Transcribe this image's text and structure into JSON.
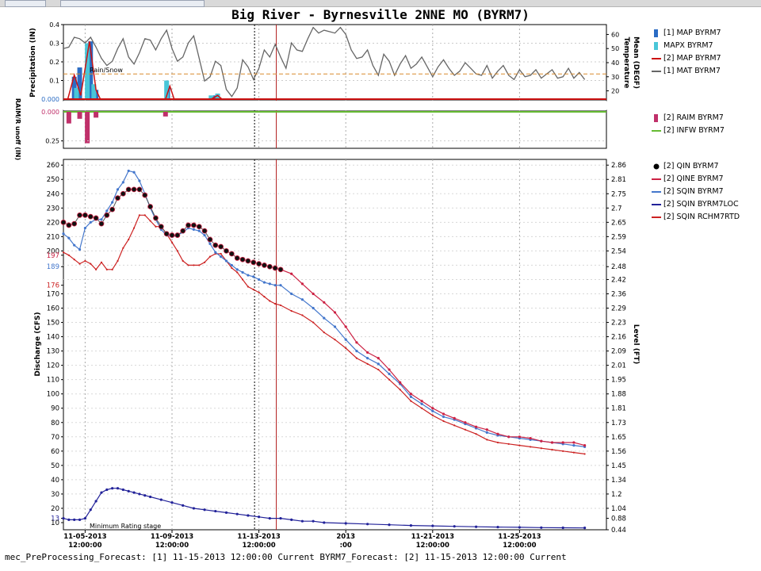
{
  "window": {
    "title": "Big River - Byrnesville 2NNE MO (BYRM7)"
  },
  "status_bar": {
    "text": "mec_PreProcessing_Forecast: [1] 11-15-2013 12:00:00 Current BYRM7_Forecast: [2] 11-15-2013 12:00:00 Current"
  },
  "precip_panel": {
    "ylabel": "Precipitation (IN)",
    "ylabel_right": "Temperature Mean (DEGF)",
    "annotation": "Rain/Snow",
    "zero_label": "0.000",
    "ticks_left": [
      "0.4",
      "0.3",
      "0.2",
      "0.1"
    ],
    "ticks_right": [
      "60",
      "50",
      "40",
      "30",
      "20"
    ],
    "legend": [
      {
        "label": "[1] MAP BYRM7",
        "color": "#2b6cc4",
        "kind": "bar"
      },
      {
        "label": "MAPX BYRM7",
        "color": "#49c6d8",
        "kind": "bar"
      },
      {
        "label": "[2] MAP BYRM7",
        "color": "#cc1111",
        "kind": "line"
      },
      {
        "label": "[1] MAT BYRM7",
        "color": "#666666",
        "kind": "line"
      }
    ]
  },
  "runoff_panel": {
    "ylabel": "RAIM/R unoff (IN)",
    "zero_label": "0.000",
    "ticks": [
      "0.25"
    ],
    "legend": [
      {
        "label": "[2] RAIM BYRM7",
        "color": "#c0306a",
        "kind": "bar"
      },
      {
        "label": "[2] INFW BYRM7",
        "color": "#66bb33",
        "kind": "line"
      }
    ]
  },
  "discharge_panel": {
    "ylabel": "Discharge (CFS)",
    "ylabel_right": "Level (FT)",
    "annotation": "Minimum Rating stage",
    "ticks_left": [
      "260",
      "250",
      "240",
      "230",
      "220",
      "210",
      "200",
      "197",
      "189",
      "176",
      "170",
      "160",
      "150",
      "140",
      "130",
      "120",
      "110",
      "100",
      "90",
      "80",
      "70",
      "60",
      "50",
      "40",
      "30",
      "20",
      "13",
      "10"
    ],
    "ticks_right": [
      "2.86",
      "2.81",
      "2.75",
      "2.7",
      "2.65",
      "2.59",
      "2.54",
      "2.48",
      "2.42",
      "2.36",
      "2.29",
      "2.23",
      "2.16",
      "2.09",
      "2.01",
      "1.95",
      "1.88",
      "1.81",
      "1.73",
      "1.65",
      "1.56",
      "1.45",
      "1.34",
      "1.2",
      "1.04",
      "0.88",
      "0.44"
    ],
    "x_ticks": [
      {
        "date": "11-05-2013",
        "time": "12:00:00"
      },
      {
        "date": "11-09-2013",
        "time": "12:00:00"
      },
      {
        "date": "11-13-2013",
        "time": "12:00:00"
      },
      {
        "date": "2013",
        "time": ":00"
      },
      {
        "date": "11-21-2013",
        "time": "12:00:00"
      },
      {
        "date": "11-25-2013",
        "time": "12:00:00"
      }
    ],
    "legend": [
      {
        "label": "[2] QIN BYRM7",
        "color": "#000000",
        "kind": "dot"
      },
      {
        "label": "[2] QINE BYRM7",
        "color": "#cc2244",
        "kind": "line"
      },
      {
        "label": "[2] SQIN BYRM7",
        "color": "#4477cc",
        "kind": "line"
      },
      {
        "label": "[2] SQIN BYRM7LOC",
        "color": "#222299",
        "kind": "line"
      },
      {
        "label": "[2] SQIN RCHM7RTD",
        "color": "#cc2222",
        "kind": "line"
      }
    ]
  },
  "chart_data": [
    {
      "type": "bar",
      "title": "Big River - Byrnesville 2NNE MO (BYRM7)",
      "ylabel": "Precipitation (IN)",
      "ylim": [
        0,
        0.4
      ],
      "series": [
        {
          "name": "[1] MAP BYRM7",
          "x": [
            0.5,
            0.75,
            1.25,
            1.5,
            4.8,
            7.0
          ],
          "values": [
            0.12,
            0.17,
            0.31,
            0.05,
            0.07,
            0.02
          ]
        },
        {
          "name": "MAPX BYRM7",
          "x": [
            0.6,
            1.1,
            1.4,
            4.75,
            6.8,
            7.1
          ],
          "values": [
            0.06,
            0.3,
            0.08,
            0.1,
            0.02,
            0.03
          ]
        },
        {
          "name": "[2] MAP BYRM7",
          "x": [
            0.2,
            0.5,
            0.8,
            1.2,
            1.5,
            1.7,
            4.7,
            4.9,
            5.1,
            6.8,
            7.1,
            7.3
          ],
          "values": [
            0,
            0.13,
            0.02,
            0.31,
            0.05,
            0,
            0,
            0.07,
            0,
            0,
            0.02,
            0
          ]
        }
      ]
    },
    {
      "type": "line",
      "ylabel": "Temperature Mean (DEGF)",
      "ylim": [
        13,
        67
      ],
      "series": [
        {
          "name": "[1] MAT BYRM7",
          "x": [
            0,
            0.25,
            0.5,
            0.75,
            1.0,
            1.25,
            1.5,
            1.75,
            2.0,
            2.25,
            2.5,
            2.75,
            3.0,
            3.25,
            3.5,
            3.75,
            4.0,
            4.25,
            4.5,
            4.75,
            5.0,
            5.25,
            5.5,
            5.75,
            6.0,
            6.25,
            6.5,
            6.75,
            7.0,
            7.25,
            7.5,
            7.75,
            8.0,
            8.25,
            8.5,
            8.75,
            9.0,
            9.25,
            9.5,
            9.75,
            10.0,
            10.25,
            10.5,
            10.75,
            11.0,
            11.25,
            11.5,
            11.75,
            12.0,
            12.25,
            12.5,
            12.75,
            13.0,
            13.25,
            13.5,
            13.75,
            14.0,
            14.25,
            14.5,
            14.75,
            15.0,
            15.25,
            15.5,
            15.75,
            16.0,
            16.25,
            16.5,
            16.75,
            17.0,
            17.25,
            17.5,
            17.75,
            18.0,
            18.25,
            18.5,
            18.75,
            19.0,
            19.25,
            19.5,
            19.75,
            20.0,
            20.25,
            20.5,
            20.75,
            21.0,
            21.25,
            21.5,
            21.75,
            22.0,
            22.25,
            22.5,
            22.75,
            23.0,
            23.25,
            23.5,
            23.75,
            24.0
          ],
          "values": [
            50,
            51,
            58,
            57,
            54,
            58,
            51,
            43,
            38,
            41,
            50,
            57,
            44,
            39,
            47,
            57,
            56,
            49,
            57,
            63,
            50,
            41,
            44,
            54,
            59,
            43,
            27,
            30,
            41,
            38,
            21,
            16,
            22,
            42,
            37,
            28,
            36,
            49,
            44,
            53,
            44,
            36,
            54,
            49,
            48,
            57,
            65,
            61,
            63,
            62,
            61,
            65,
            60,
            49,
            43,
            44,
            49,
            38,
            31,
            46,
            41,
            31,
            39,
            45,
            36,
            39,
            44,
            37,
            30,
            37,
            42,
            36,
            31,
            34,
            40,
            36,
            32,
            31,
            38,
            29,
            34,
            38,
            31,
            28,
            35,
            30,
            31,
            35,
            29,
            32,
            35,
            29,
            30,
            36,
            29,
            33,
            28
          ]
        }
      ]
    },
    {
      "type": "bar",
      "ylabel": "RAIM/R unoff (IN)",
      "ylim": [
        0.3,
        0
      ],
      "series": [
        {
          "name": "[2] RAIM BYRM7",
          "x": [
            0.25,
            0.75,
            1.1,
            1.5,
            4.7
          ],
          "values": [
            0.1,
            0.06,
            0.27,
            0.05,
            0.04
          ]
        },
        {
          "name": "[2] INFW BYRM7",
          "x": [
            0,
            24
          ],
          "values": [
            0,
            0
          ]
        }
      ]
    },
    {
      "type": "line",
      "ylabel": "Discharge (CFS)",
      "ylim": [
        5,
        264
      ],
      "series": [
        {
          "name": "[2] QIN BYRM7",
          "x": [
            0,
            0.25,
            0.5,
            0.75,
            1.0,
            1.25,
            1.5,
            1.75,
            2.0,
            2.25,
            2.5,
            2.75,
            3.0,
            3.25,
            3.5,
            3.75,
            4.0,
            4.25,
            4.5,
            4.75,
            5.0,
            5.25,
            5.5,
            5.75,
            6.0,
            6.25,
            6.5,
            6.75,
            7.0,
            7.25,
            7.5,
            7.75,
            8.0,
            8.25,
            8.5,
            8.75,
            9.0,
            9.25,
            9.5,
            9.75,
            10.0
          ],
          "values": [
            220,
            218,
            219,
            225,
            225,
            224,
            223,
            219,
            225,
            229,
            237,
            240,
            243,
            243,
            243,
            239,
            231,
            223,
            217,
            212,
            211,
            211,
            214,
            218,
            218,
            217,
            214,
            208,
            204,
            203,
            200,
            198,
            195,
            194,
            193,
            192,
            191,
            190,
            189,
            188,
            187
          ]
        },
        {
          "name": "[2] QINE BYRM7",
          "x": [
            10.0,
            10.5,
            11.0,
            11.5,
            12.0,
            12.5,
            13.0,
            13.5,
            14.0,
            14.5,
            15.0,
            15.5,
            16.0,
            16.5,
            17.0,
            17.5,
            18.0,
            18.5,
            19.0,
            19.5,
            20.0,
            20.5,
            21.0,
            21.5,
            22.0,
            22.5,
            23.0,
            23.5,
            24.0
          ],
          "values": [
            187,
            184,
            177,
            170,
            164,
            157,
            147,
            136,
            129,
            125,
            117,
            108,
            100,
            95,
            90,
            86,
            83,
            80,
            77,
            75,
            72,
            70,
            70,
            69,
            67,
            66,
            66,
            66,
            64
          ]
        },
        {
          "name": "[2] SQIN BYRM7",
          "x": [
            0,
            0.25,
            0.5,
            0.75,
            1.0,
            1.25,
            1.5,
            1.75,
            2.0,
            2.25,
            2.5,
            2.75,
            3.0,
            3.25,
            3.5,
            3.75,
            4.0,
            4.25,
            4.5,
            4.75,
            5.0,
            5.25,
            5.5,
            5.75,
            6.0,
            6.25,
            6.5,
            6.75,
            7.0,
            7.25,
            7.5,
            7.75,
            8.0,
            8.25,
            8.5,
            8.75,
            9.0,
            9.25,
            9.5,
            9.75,
            10.0,
            10.5,
            11.0,
            11.5,
            12.0,
            12.5,
            13.0,
            13.5,
            14.0,
            14.5,
            15.0,
            15.5,
            16.0,
            16.5,
            17.0,
            17.5,
            18.0,
            18.5,
            19.0,
            19.5,
            20.0,
            20.5,
            21.0,
            21.5,
            22.0,
            22.5,
            23.0,
            23.5,
            24.0
          ],
          "values": [
            212,
            209,
            204,
            201,
            216,
            220,
            222,
            222,
            228,
            234,
            243,
            248,
            256,
            255,
            249,
            240,
            230,
            222,
            215,
            211,
            210,
            211,
            213,
            216,
            215,
            214,
            211,
            205,
            199,
            196,
            193,
            190,
            187,
            185,
            183,
            182,
            180,
            178,
            177,
            176,
            176,
            170,
            166,
            160,
            153,
            147,
            138,
            130,
            125,
            121,
            114,
            107,
            98,
            93,
            88,
            84,
            82,
            79,
            76,
            73,
            71,
            70,
            69,
            68,
            67,
            66,
            65,
            64,
            63
          ]
        },
        {
          "name": "[2] SQIN BYRM7LOC",
          "x": [
            0,
            0.25,
            0.5,
            0.75,
            1.0,
            1.25,
            1.5,
            1.75,
            2.0,
            2.25,
            2.5,
            2.75,
            3.0,
            3.25,
            3.5,
            3.75,
            4.0,
            4.5,
            5.0,
            5.5,
            6.0,
            6.5,
            7.0,
            7.5,
            8.0,
            8.5,
            9.0,
            9.5,
            10.0,
            10.5,
            11.0,
            11.5,
            12.0,
            13.0,
            14.0,
            15.0,
            16.0,
            17.0,
            18.0,
            19.0,
            20.0,
            21.0,
            22.0,
            23.0,
            24.0
          ],
          "values": [
            13,
            12,
            12,
            12,
            13,
            19,
            25,
            31,
            33,
            34,
            34,
            33,
            32,
            31,
            30,
            29,
            28,
            26,
            24,
            22,
            20,
            19,
            18,
            17,
            16,
            15,
            14,
            13,
            13,
            12,
            11,
            11,
            10,
            9.5,
            9,
            8.5,
            8,
            7.7,
            7.4,
            7.1,
            6.9,
            6.7,
            6.5,
            6.4,
            6.3
          ]
        },
        {
          "name": "[2] SQIN RCHM7RTD",
          "x": [
            0,
            0.25,
            0.5,
            0.75,
            1.0,
            1.25,
            1.5,
            1.75,
            2.0,
            2.25,
            2.5,
            2.75,
            3.0,
            3.25,
            3.5,
            3.75,
            4.0,
            4.25,
            4.5,
            4.75,
            5.0,
            5.25,
            5.5,
            5.75,
            6.0,
            6.25,
            6.5,
            6.75,
            7.0,
            7.25,
            7.5,
            7.75,
            8.0,
            8.25,
            8.5,
            8.75,
            9.0,
            9.25,
            9.5,
            9.75,
            10.0,
            10.5,
            11.0,
            11.5,
            12.0,
            12.5,
            13.0,
            13.5,
            14.0,
            14.5,
            15.0,
            15.5,
            16.0,
            16.5,
            17.0,
            17.5,
            18.0,
            18.5,
            19.0,
            19.5,
            20.0,
            20.5,
            21.0,
            21.5,
            22.0,
            22.5,
            23.0,
            23.5,
            24.0
          ],
          "values": [
            199,
            197,
            194,
            191,
            193,
            191,
            187,
            192,
            187,
            187,
            193,
            202,
            208,
            216,
            225,
            225,
            221,
            217,
            217,
            212,
            206,
            200,
            193,
            190,
            190,
            190,
            192,
            196,
            198,
            198,
            193,
            188,
            185,
            180,
            175,
            173,
            171,
            168,
            165,
            163,
            162,
            158,
            155,
            150,
            143,
            138,
            132,
            125,
            121,
            117,
            110,
            103,
            95,
            90,
            85,
            81,
            78,
            75,
            72,
            68,
            66,
            65,
            64,
            63,
            62,
            61,
            60,
            59,
            58
          ]
        }
      ]
    }
  ]
}
